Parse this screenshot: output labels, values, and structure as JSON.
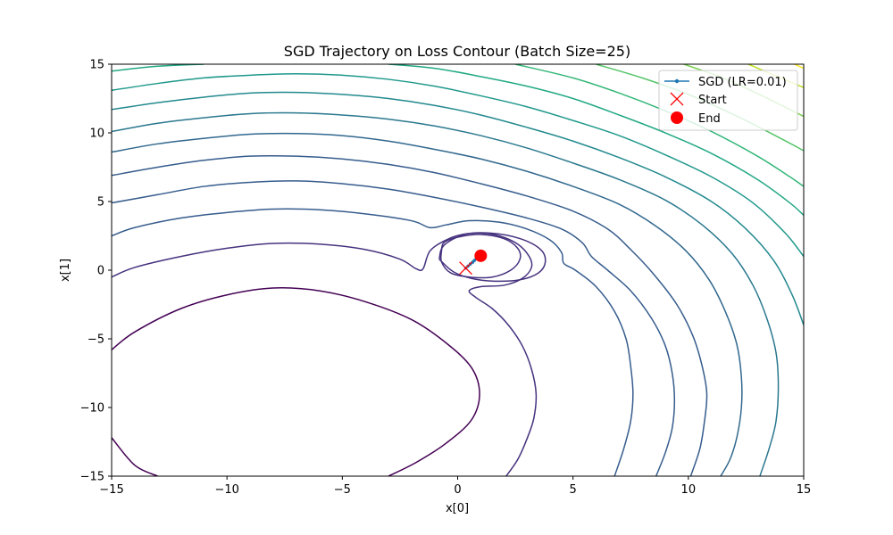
{
  "chart_data": {
    "type": "line",
    "title": "SGD Trajectory on Loss Contour (Batch Size=25)",
    "xlabel": "x[0]",
    "ylabel": "x[1]",
    "xlim": [
      -15,
      15
    ],
    "ylim": [
      -15,
      15
    ],
    "x_ticks": [
      -15,
      -10,
      -5,
      0,
      5,
      10,
      15
    ],
    "y_ticks": [
      -15,
      -10,
      -5,
      0,
      5,
      10,
      15
    ],
    "x_tick_labels": [
      "−15",
      "−10",
      "−5",
      "0",
      "5",
      "10",
      "15"
    ],
    "y_tick_labels": [
      "−15",
      "−10",
      "−5",
      "0",
      "5",
      "10",
      "15"
    ],
    "grid": false,
    "legend_position": "top-right",
    "legend": [
      {
        "label": "SGD (LR=0.01)",
        "marker": "line-dot",
        "color": "#1f77b4"
      },
      {
        "label": "Start",
        "marker": "x",
        "color": "#ff0000"
      },
      {
        "label": "End",
        "marker": "circle",
        "color": "#ff0000"
      }
    ],
    "contour_colors": [
      "#440154",
      "#46327e",
      "#365c8d",
      "#277f8e",
      "#1fa187",
      "#4ac16d",
      "#a0da39",
      "#fde725"
    ],
    "series": [
      {
        "name": "SGD (LR=0.01)",
        "color": "#1f77b4",
        "x": [
          0.35,
          0.45,
          0.55,
          0.65,
          0.72,
          0.8,
          0.88,
          0.95,
          1.0
        ],
        "y": [
          0.15,
          0.3,
          0.45,
          0.58,
          0.7,
          0.82,
          0.92,
          1.0,
          1.05
        ]
      }
    ],
    "start": {
      "x": 0.35,
      "y": 0.15,
      "color": "#ff0000"
    },
    "end": {
      "x": 1.0,
      "y": 1.05,
      "color": "#ff0000"
    },
    "contours": [
      {
        "level": 0,
        "color": "#440154",
        "points": [
          [
            -15,
            -5.8
          ],
          [
            -14,
            -4.5
          ],
          [
            -12,
            -2.8
          ],
          [
            -10,
            -1.8
          ],
          [
            -8,
            -1.3
          ],
          [
            -6,
            -1.5
          ],
          [
            -4,
            -2.3
          ],
          [
            -2,
            -3.6
          ],
          [
            -0.5,
            -5.3
          ],
          [
            0.6,
            -7.1
          ],
          [
            0.95,
            -9
          ],
          [
            0.6,
            -10.9
          ],
          [
            -0.5,
            -12.6
          ],
          [
            -1.8,
            -14
          ],
          [
            -3,
            -15
          ]
        ]
      },
      {
        "level": 0,
        "color": "#440154",
        "points": [
          [
            -13,
            -15
          ],
          [
            -14,
            -14.2
          ],
          [
            -15,
            -12.2
          ]
        ]
      },
      {
        "level": 1,
        "color": "#46327e",
        "points": [
          [
            -15,
            -0.5
          ],
          [
            -14,
            0.2
          ],
          [
            -12,
            1
          ],
          [
            -10,
            1.6
          ],
          [
            -8,
            1.95
          ],
          [
            -6,
            1.9
          ],
          [
            -4,
            1.5
          ],
          [
            -2.5,
            0.8
          ],
          [
            -1.8,
            0.1
          ],
          [
            -1.5,
            0.1
          ],
          [
            -1.2,
            1.4
          ],
          [
            -0.5,
            2.2
          ],
          [
            0.2,
            2.6
          ],
          [
            1,
            2.7
          ],
          [
            1.8,
            2.5
          ],
          [
            2.6,
            1.9
          ],
          [
            3.1,
            1
          ],
          [
            3.2,
            0.2
          ],
          [
            2.8,
            -0.6
          ],
          [
            2,
            -1.1
          ],
          [
            1,
            -1.2
          ],
          [
            0.5,
            -1.5
          ],
          [
            0.8,
            -2
          ],
          [
            1.5,
            -2.8
          ],
          [
            2.2,
            -4
          ],
          [
            2.8,
            -5.5
          ],
          [
            3.2,
            -7.2
          ],
          [
            3.4,
            -9
          ],
          [
            3.3,
            -10.8
          ],
          [
            3,
            -12.3
          ],
          [
            2.6,
            -13.8
          ],
          [
            2.1,
            -15
          ]
        ]
      },
      {
        "level": 2,
        "color": "#46327e",
        "points": [
          [
            -0.7,
            1.4
          ],
          [
            -0.6,
            2
          ],
          [
            0,
            2.4
          ],
          [
            1,
            2.6
          ],
          [
            2,
            2.3
          ],
          [
            2.6,
            1.6
          ],
          [
            2.7,
            0.8
          ],
          [
            2.3,
            0
          ],
          [
            1.5,
            -0.5
          ],
          [
            0.5,
            -0.5
          ],
          [
            -0.3,
            -0.2
          ],
          [
            -0.7,
            0.6
          ],
          [
            -0.7,
            1.4
          ]
        ]
      },
      {
        "level": 3,
        "color": "#46327e",
        "points": [
          [
            -0.8,
            0.8
          ],
          [
            -0.6,
            1.8
          ],
          [
            0.3,
            2.6
          ],
          [
            1.4,
            2.7
          ],
          [
            2.7,
            2.3
          ],
          [
            3.6,
            1.5
          ],
          [
            3.8,
            0.6
          ],
          [
            3.5,
            -0.2
          ],
          [
            2.7,
            -0.7
          ],
          [
            1.6,
            -0.8
          ],
          [
            0.6,
            -0.6
          ],
          [
            -0.2,
            -0.1
          ],
          [
            -0.8,
            0.8
          ]
        ]
      },
      {
        "level": 4,
        "color": "#365c8d",
        "points": [
          [
            -15,
            2.5
          ],
          [
            -14,
            3.1
          ],
          [
            -12,
            3.8
          ],
          [
            -10,
            4.2
          ],
          [
            -8,
            4.45
          ],
          [
            -6,
            4.4
          ],
          [
            -4,
            4.1
          ],
          [
            -2,
            3.6
          ],
          [
            -1.2,
            3.1
          ],
          [
            -0.5,
            3.3
          ],
          [
            0.5,
            3.6
          ],
          [
            1.8,
            3.5
          ],
          [
            3,
            3
          ],
          [
            4,
            2.2
          ],
          [
            4.5,
            1.3
          ],
          [
            4.6,
            0.5
          ],
          [
            5.1,
            0
          ],
          [
            6,
            -1.2
          ],
          [
            6.8,
            -3
          ],
          [
            7.3,
            -5
          ],
          [
            7.5,
            -7
          ],
          [
            7.6,
            -9
          ],
          [
            7.5,
            -11
          ],
          [
            7.2,
            -13
          ],
          [
            6.8,
            -15
          ]
        ]
      },
      {
        "level": 5,
        "color": "#365c8d",
        "points": [
          [
            -15,
            4.9
          ],
          [
            -13,
            5.5
          ],
          [
            -11,
            6.1
          ],
          [
            -9,
            6.4
          ],
          [
            -7,
            6.5
          ],
          [
            -5,
            6.3
          ],
          [
            -3,
            5.9
          ],
          [
            -1,
            5.3
          ],
          [
            1,
            4.6
          ],
          [
            3,
            3.8
          ],
          [
            4.5,
            3
          ],
          [
            5.4,
            2
          ],
          [
            5.8,
            1
          ],
          [
            6.5,
            0
          ],
          [
            7.5,
            -1.5
          ],
          [
            8.4,
            -3.5
          ],
          [
            9,
            -5.5
          ],
          [
            9.3,
            -7.5
          ],
          [
            9.4,
            -9.5
          ],
          [
            9.3,
            -11.5
          ],
          [
            9,
            -13.3
          ],
          [
            8.6,
            -15
          ]
        ]
      },
      {
        "level": 6,
        "color": "#365c8d",
        "points": [
          [
            -15,
            6.9
          ],
          [
            -13,
            7.5
          ],
          [
            -11,
            8
          ],
          [
            -9,
            8.3
          ],
          [
            -7,
            8.3
          ],
          [
            -5,
            8.1
          ],
          [
            -3,
            7.7
          ],
          [
            -1,
            7.1
          ],
          [
            1,
            6.3
          ],
          [
            3,
            5.4
          ],
          [
            5,
            4.3
          ],
          [
            6.5,
            3
          ],
          [
            7.5,
            1.5
          ],
          [
            8.5,
            -0.3
          ],
          [
            9.5,
            -2.5
          ],
          [
            10.2,
            -4.8
          ],
          [
            10.6,
            -7
          ],
          [
            10.8,
            -9
          ],
          [
            10.7,
            -11
          ],
          [
            10.5,
            -13
          ],
          [
            10.1,
            -15
          ]
        ]
      },
      {
        "level": 7,
        "color": "#31688e",
        "points": [
          [
            -15,
            8.6
          ],
          [
            -13,
            9.2
          ],
          [
            -11,
            9.6
          ],
          [
            -9,
            9.9
          ],
          [
            -7,
            9.95
          ],
          [
            -5,
            9.8
          ],
          [
            -3,
            9.4
          ],
          [
            -1,
            8.8
          ],
          [
            1,
            8.1
          ],
          [
            3,
            7.2
          ],
          [
            5,
            6.1
          ],
          [
            7,
            4.8
          ],
          [
            8.6,
            3.2
          ],
          [
            9.9,
            1.4
          ],
          [
            10.9,
            -0.7
          ],
          [
            11.6,
            -3
          ],
          [
            12.1,
            -5.4
          ],
          [
            12.3,
            -7.8
          ],
          [
            12.3,
            -10
          ],
          [
            12.1,
            -12.2
          ],
          [
            11.8,
            -13.8
          ],
          [
            11.4,
            -15
          ]
        ]
      },
      {
        "level": 8,
        "color": "#2a788e",
        "points": [
          [
            -15,
            10.1
          ],
          [
            -13,
            10.7
          ],
          [
            -11,
            11.1
          ],
          [
            -9,
            11.4
          ],
          [
            -7,
            11.45
          ],
          [
            -5,
            11.3
          ],
          [
            -3,
            11
          ],
          [
            -1,
            10.5
          ],
          [
            1,
            9.8
          ],
          [
            3,
            8.9
          ],
          [
            5,
            7.8
          ],
          [
            7,
            6.6
          ],
          [
            9,
            5.1
          ],
          [
            10.6,
            3.3
          ],
          [
            11.9,
            1.2
          ],
          [
            12.8,
            -1.1
          ],
          [
            13.4,
            -3.5
          ],
          [
            13.8,
            -6
          ],
          [
            13.9,
            -8.5
          ],
          [
            13.8,
            -11
          ],
          [
            13.5,
            -13
          ],
          [
            13.1,
            -15
          ]
        ]
      },
      {
        "level": 9,
        "color": "#23898e",
        "points": [
          [
            -15,
            11.7
          ],
          [
            -13,
            12.2
          ],
          [
            -11,
            12.6
          ],
          [
            -9,
            12.9
          ],
          [
            -7,
            12.95
          ],
          [
            -5,
            12.8
          ],
          [
            -3,
            12.5
          ],
          [
            -1,
            12
          ],
          [
            1,
            11.3
          ],
          [
            3,
            10.4
          ],
          [
            5,
            9.4
          ],
          [
            7,
            8.2
          ],
          [
            9,
            6.8
          ],
          [
            11,
            5
          ],
          [
            12.5,
            3
          ],
          [
            13.7,
            0.7
          ],
          [
            14.5,
            -1.8
          ],
          [
            15,
            -4
          ]
        ]
      },
      {
        "level": 10,
        "color": "#1f988b",
        "points": [
          [
            -15,
            13.1
          ],
          [
            -13,
            13.6
          ],
          [
            -11,
            14
          ],
          [
            -9,
            14.2
          ],
          [
            -7,
            14.3
          ],
          [
            -5,
            14.2
          ],
          [
            -3,
            13.9
          ],
          [
            -1,
            13.4
          ],
          [
            1,
            12.7
          ],
          [
            3,
            11.9
          ],
          [
            5,
            10.9
          ],
          [
            7,
            9.8
          ],
          [
            9,
            8.4
          ],
          [
            11,
            6.8
          ],
          [
            12.8,
            4.9
          ],
          [
            14.2,
            2.7
          ],
          [
            15,
            1
          ]
        ]
      },
      {
        "level": 11,
        "color": "#22a884",
        "points": [
          [
            -15,
            14.5
          ],
          [
            -13,
            14.85
          ],
          [
            -11,
            15
          ]
        ]
      },
      {
        "level": 11,
        "color": "#22a884",
        "points": [
          [
            -3,
            15
          ],
          [
            -1,
            14.7
          ],
          [
            1,
            14.1
          ],
          [
            3,
            13.4
          ],
          [
            5,
            12.5
          ],
          [
            7,
            11.3
          ],
          [
            9,
            10
          ],
          [
            11,
            8.5
          ],
          [
            13,
            6.6
          ],
          [
            14.4,
            4.9
          ],
          [
            15,
            4
          ]
        ]
      },
      {
        "level": 12,
        "color": "#35b779",
        "points": [
          [
            2.5,
            15
          ],
          [
            5,
            14
          ],
          [
            7,
            12.9
          ],
          [
            9,
            11.6
          ],
          [
            11,
            10.1
          ],
          [
            13,
            8.3
          ],
          [
            14.4,
            6.8
          ],
          [
            15,
            6.1
          ]
        ]
      },
      {
        "level": 13,
        "color": "#54c568",
        "points": [
          [
            6,
            15
          ],
          [
            8,
            14
          ],
          [
            10,
            12.8
          ],
          [
            12,
            11.3
          ],
          [
            14,
            9.6
          ],
          [
            15,
            8.7
          ]
        ]
      },
      {
        "level": 14,
        "color": "#7ad151",
        "points": [
          [
            9.8,
            15
          ],
          [
            11.5,
            14
          ],
          [
            13.2,
            12.7
          ],
          [
            15,
            11.2
          ]
        ]
      },
      {
        "level": 15,
        "color": "#bddf26",
        "points": [
          [
            12.6,
            15
          ],
          [
            14,
            14
          ],
          [
            15,
            13.3
          ]
        ]
      },
      {
        "level": 16,
        "color": "#fde725",
        "points": [
          [
            14.6,
            15
          ],
          [
            15,
            14.7
          ]
        ]
      }
    ]
  }
}
